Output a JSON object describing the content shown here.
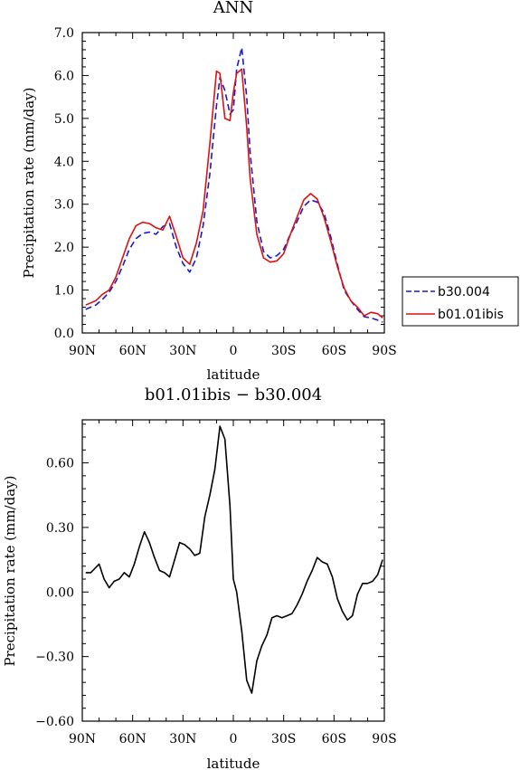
{
  "chart_data": [
    {
      "type": "line",
      "title": "ANN",
      "xlabel": "latitude",
      "ylabel": "Precipitation rate (mm/day)",
      "xlim": [
        90,
        -90
      ],
      "ylim": [
        0,
        7
      ],
      "xticks": [
        90,
        60,
        30,
        0,
        -30,
        -60,
        -90
      ],
      "xtick_labels": [
        "90N",
        "60N",
        "30N",
        "0",
        "30S",
        "60S",
        "90S"
      ],
      "yticks": [
        0,
        1,
        2,
        3,
        4,
        5,
        6,
        7
      ],
      "ytick_labels": [
        "0.0",
        "1.0",
        "2.0",
        "3.0",
        "4.0",
        "5.0",
        "6.0",
        "7.0"
      ],
      "legend_position": "right",
      "series": [
        {
          "name": "b30.004",
          "color": "#1a1acc",
          "style": "dashed",
          "x": [
            88,
            82,
            78,
            74,
            70,
            66,
            62,
            58,
            54,
            50,
            46,
            42,
            38,
            34,
            30,
            26,
            22,
            18,
            14,
            10,
            8,
            5,
            2,
            0,
            -2,
            -5,
            -8,
            -10,
            -14,
            -18,
            -22,
            -26,
            -30,
            -34,
            -38,
            -42,
            -46,
            -50,
            -54,
            -58,
            -62,
            -66,
            -70,
            -74,
            -78,
            -82,
            -86,
            -89
          ],
          "values": [
            0.55,
            0.65,
            0.78,
            0.95,
            1.2,
            1.55,
            1.95,
            2.2,
            2.32,
            2.35,
            2.3,
            2.48,
            2.55,
            2.0,
            1.62,
            1.42,
            1.75,
            2.5,
            3.7,
            5.3,
            5.95,
            5.65,
            5.1,
            5.2,
            6.15,
            6.65,
            5.5,
            4.2,
            2.6,
            1.9,
            1.75,
            1.8,
            1.95,
            2.3,
            2.6,
            2.95,
            3.1,
            3.05,
            2.8,
            2.25,
            1.6,
            1.0,
            0.75,
            0.55,
            0.38,
            0.35,
            0.3,
            0.25
          ]
        },
        {
          "name": "b01.01ibis",
          "color": "#dd1111",
          "style": "solid",
          "x": [
            88,
            82,
            78,
            74,
            70,
            66,
            62,
            58,
            54,
            50,
            46,
            42,
            38,
            34,
            30,
            26,
            22,
            18,
            14,
            10,
            8,
            5,
            2,
            0,
            -2,
            -5,
            -8,
            -10,
            -14,
            -18,
            -22,
            -26,
            -30,
            -34,
            -38,
            -42,
            -46,
            -50,
            -54,
            -58,
            -62,
            -66,
            -70,
            -74,
            -78,
            -82,
            -86,
            -89
          ],
          "values": [
            0.65,
            0.75,
            0.9,
            1.0,
            1.3,
            1.75,
            2.2,
            2.5,
            2.58,
            2.55,
            2.45,
            2.4,
            2.72,
            2.25,
            1.75,
            1.6,
            2.1,
            2.85,
            4.4,
            6.1,
            6.05,
            5.0,
            4.95,
            5.6,
            6.05,
            6.15,
            4.8,
            3.6,
            2.3,
            1.75,
            1.65,
            1.68,
            1.85,
            2.3,
            2.7,
            3.1,
            3.25,
            3.12,
            2.7,
            2.15,
            1.55,
            1.05,
            0.75,
            0.6,
            0.4,
            0.48,
            0.45,
            0.35
          ]
        }
      ]
    },
    {
      "type": "line",
      "title": "b01.01ibis − b30.004",
      "xlabel": "latitude",
      "ylabel": "Precipitation rate (mm/day)",
      "xlim": [
        90,
        -90
      ],
      "ylim": [
        -0.6,
        0.8
      ],
      "xticks": [
        90,
        60,
        30,
        0,
        -30,
        -60,
        -90
      ],
      "xtick_labels": [
        "90N",
        "60N",
        "30N",
        "0",
        "30S",
        "60S",
        "90S"
      ],
      "yticks": [
        -0.6,
        -0.3,
        0,
        0.3,
        0.6
      ],
      "ytick_labels": [
        "−0.60",
        "−0.30",
        "0.00",
        "0.30",
        "0.60"
      ],
      "series": [
        {
          "color": "#000000",
          "style": "solid",
          "x": [
            88,
            85,
            80,
            77,
            74,
            71,
            68,
            65,
            62,
            59,
            56,
            53,
            50,
            47,
            44,
            41,
            38,
            35,
            32,
            29,
            26,
            23,
            20,
            17,
            14,
            11,
            8,
            5,
            2,
            0,
            -2,
            -5,
            -8,
            -11,
            -14,
            -17,
            -20,
            -23,
            -26,
            -29,
            -32,
            -35,
            -38,
            -41,
            -44,
            -47,
            -50,
            -53,
            -56,
            -59,
            -62,
            -65,
            -68,
            -71,
            -74,
            -77,
            -80,
            -83,
            -86,
            -89
          ],
          "values": [
            0.09,
            0.09,
            0.13,
            0.06,
            0.02,
            0.05,
            0.06,
            0.09,
            0.07,
            0.13,
            0.21,
            0.28,
            0.23,
            0.16,
            0.1,
            0.09,
            0.07,
            0.15,
            0.23,
            0.22,
            0.2,
            0.17,
            0.18,
            0.35,
            0.45,
            0.57,
            0.77,
            0.71,
            0.4,
            0.06,
            0.0,
            -0.18,
            -0.41,
            -0.47,
            -0.32,
            -0.25,
            -0.2,
            -0.12,
            -0.11,
            -0.12,
            -0.11,
            -0.1,
            -0.06,
            -0.01,
            0.05,
            0.1,
            0.16,
            0.14,
            0.13,
            0.07,
            -0.03,
            -0.09,
            -0.13,
            -0.11,
            -0.01,
            0.04,
            0.04,
            0.05,
            0.08,
            0.15
          ]
        }
      ]
    }
  ]
}
